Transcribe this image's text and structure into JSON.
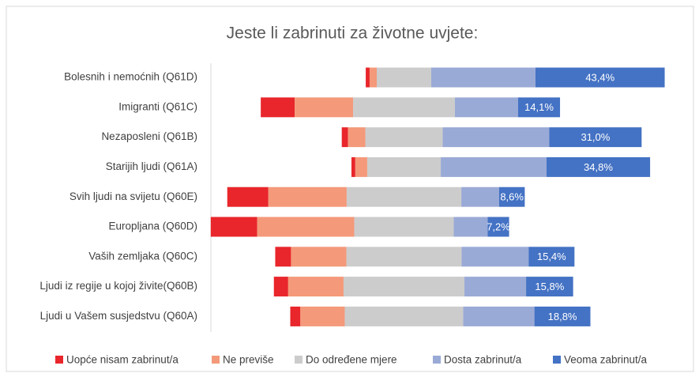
{
  "chart_data": {
    "type": "diverging-bar",
    "title": "Jeste li zabrinuti za životne uvjete:",
    "categories": [
      "Bolesnih i nemoćnih (Q61D)",
      "Imigranti (Q61C)",
      "Nezaposleni (Q61B)",
      "Starijih ljudi (Q61A)",
      "Svih ljudi na svijetu (Q60E)",
      "Europljana (Q60D)",
      "Vaših zemljaka (Q60C)",
      "Ljudi iz regije u kojoj živite(Q60B)",
      "Ljudi u Vašem susjedstvu (Q60A)"
    ],
    "series": [
      {
        "name": "Uopće nisam zabrinut/a",
        "color": "#e8262b",
        "values": [
          1.3,
          11.4,
          2.1,
          1.3,
          13.8,
          15.6,
          5.3,
          4.8,
          3.4
        ]
      },
      {
        "name": "Ne previše",
        "color": "#f4997a",
        "values": [
          2.4,
          19.6,
          5.8,
          4.0,
          26.3,
          32.6,
          18.6,
          18.6,
          14.9
        ]
      },
      {
        "name": "Do određene mjere",
        "color": "#cccccc",
        "values": [
          18.3,
          34.2,
          26.0,
          24.7,
          38.5,
          33.4,
          38.7,
          40.6,
          39.8
        ]
      },
      {
        "name": "Dosta zabrinut/a",
        "color": "#9aaad6",
        "values": [
          35.0,
          21.2,
          35.8,
          35.5,
          12.7,
          11.4,
          22.5,
          20.7,
          23.9
        ]
      },
      {
        "name": "Veoma zabrinut/a",
        "color": "#4472c4",
        "values": [
          43.4,
          14.1,
          31.0,
          34.8,
          8.6,
          7.2,
          15.4,
          15.8,
          18.8
        ],
        "value_labels": [
          "43,4%",
          "14,1%",
          "31,0%",
          "34,8%",
          "8,6%",
          "7,2%",
          "15,4%",
          "15,8%",
          "18,8%"
        ]
      }
    ],
    "neutral_series": 2
  }
}
